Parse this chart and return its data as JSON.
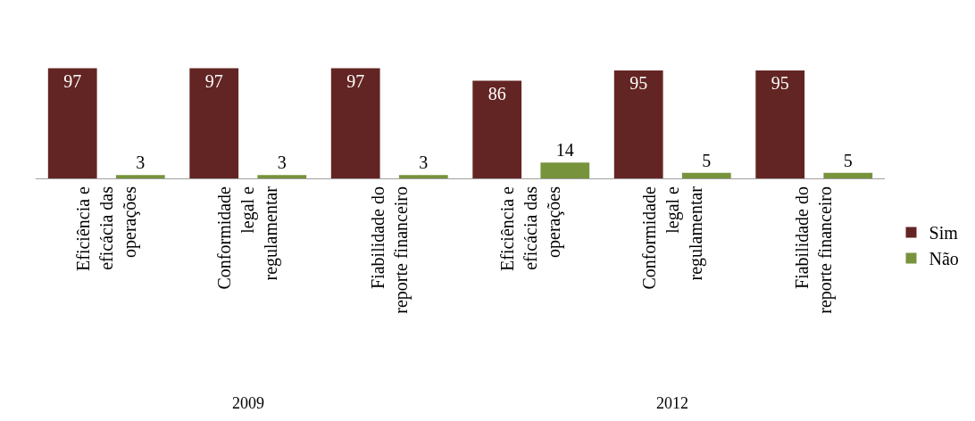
{
  "chart_data": {
    "type": "bar",
    "categories": [
      "Eficiência e\neficácia das\noperações",
      "Conformidade\nlegal e\nregulamentar",
      "Fiabilidade do\nreporte financeiro",
      "Eficiência e\neficácia das\noperações",
      "Conformidade\nlegal e\nregulamentar",
      "Fiabilidade do\nreporte financeiro"
    ],
    "series": [
      {
        "name": "Sim",
        "color": "#632523",
        "values": [
          97,
          97,
          97,
          86,
          95,
          95
        ]
      },
      {
        "name": "Não",
        "color": "#77933c",
        "values": [
          3,
          3,
          3,
          14,
          5,
          5
        ]
      }
    ],
    "annotations": [
      "2009",
      "2012"
    ],
    "data_labels": true,
    "grid": false,
    "legend": "right"
  }
}
